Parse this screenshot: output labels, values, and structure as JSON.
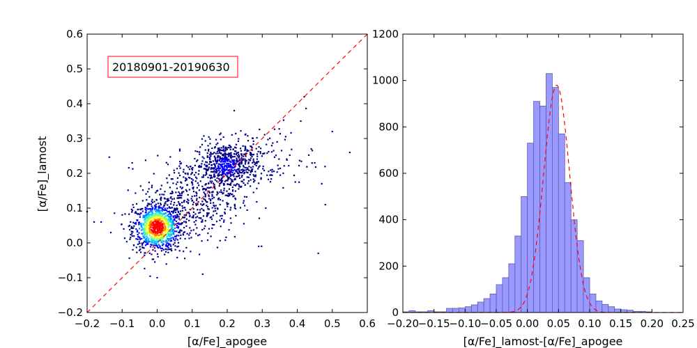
{
  "chart_data": [
    {
      "type": "scatter",
      "xlabel": "[α/Fe]_apogee",
      "ylabel": "[α/Fe]_lamost",
      "xlim": [
        -0.2,
        0.6
      ],
      "ylim": [
        -0.2,
        0.6
      ],
      "xticks": [
        -0.2,
        -0.1,
        0.0,
        0.1,
        0.2,
        0.3,
        0.4,
        0.5,
        0.6
      ],
      "yticks": [
        -0.2,
        -0.1,
        0.0,
        0.1,
        0.2,
        0.3,
        0.4,
        0.5,
        0.6
      ],
      "xtick_labels": [
        "−0.2",
        "−0.1",
        "0.0",
        "0.1",
        "0.2",
        "0.3",
        "0.4",
        "0.5",
        "0.6"
      ],
      "ytick_labels": [
        "−0.2",
        "−0.1",
        "0.0",
        "0.1",
        "0.2",
        "0.3",
        "0.4",
        "0.5",
        "0.6"
      ],
      "annotation": "20180901-20190630",
      "reference_line": {
        "style": "dashed",
        "color": "#ff0000",
        "from": [
          -0.2,
          -0.2
        ],
        "to": [
          0.6,
          0.6
        ]
      },
      "density_colors": [
        "#00008b",
        "#0000ff",
        "#0080ff",
        "#00e0ff",
        "#7fff7f",
        "#ffff00",
        "#ff8000",
        "#ff0000"
      ],
      "clusters": [
        {
          "cx": 0.0,
          "cy": 0.045,
          "sx": 0.035,
          "sy": 0.035,
          "n": 900
        },
        {
          "cx": 0.2,
          "cy": 0.22,
          "sx": 0.045,
          "sy": 0.035,
          "n": 650
        },
        {
          "cx": 0.1,
          "cy": 0.12,
          "sx": 0.07,
          "sy": 0.06,
          "n": 450
        },
        {
          "cx": 0.33,
          "cy": 0.25,
          "sx": 0.06,
          "sy": 0.05,
          "n": 80
        }
      ],
      "outliers": [
        {
          "x": -0.2,
          "y": 0.09
        },
        {
          "x": -0.18,
          "y": 0.06
        },
        {
          "x": -0.16,
          "y": 0.06
        },
        {
          "x": 0.42,
          "y": 0.42
        },
        {
          "x": 0.22,
          "y": 0.38
        },
        {
          "x": 0.5,
          "y": 0.32
        },
        {
          "x": 0.55,
          "y": 0.26
        },
        {
          "x": 0.46,
          "y": -0.03
        },
        {
          "x": 0.48,
          "y": 0.11
        },
        {
          "x": 0.47,
          "y": 0.17
        },
        {
          "x": 0.13,
          "y": -0.09
        },
        {
          "x": 0.0,
          "y": -0.1
        },
        {
          "x": 0.29,
          "y": -0.01
        },
        {
          "x": 0.45,
          "y": 0.23
        },
        {
          "x": 0.44,
          "y": 0.27
        },
        {
          "x": 0.41,
          "y": 0.35
        },
        {
          "x": 0.31,
          "y": 0.1
        },
        {
          "x": 0.36,
          "y": 0.2
        }
      ]
    },
    {
      "type": "bar",
      "subtype": "histogram",
      "xlabel": "[α/Fe]_lamost-[α/Fe]_apogee",
      "ylabel": "",
      "xlim": [
        -0.2,
        0.25
      ],
      "ylim": [
        0,
        1200
      ],
      "xticks": [
        -0.2,
        -0.15,
        -0.1,
        -0.05,
        0.0,
        0.05,
        0.1,
        0.15,
        0.2,
        0.25
      ],
      "yticks": [
        0,
        200,
        400,
        600,
        800,
        1000,
        1200
      ],
      "xtick_labels": [
        "−0.20",
        "−0.15",
        "−0.10",
        "−0.05",
        "0.00",
        "0.05",
        "0.10",
        "0.15",
        "0.20",
        "0.25"
      ],
      "ytick_labels": [
        "0",
        "200",
        "400",
        "600",
        "800",
        "1000",
        "1200"
      ],
      "bin_width": 0.01,
      "bin_start": -0.2,
      "values": [
        3,
        8,
        3,
        3,
        8,
        3,
        3,
        18,
        18,
        20,
        25,
        33,
        45,
        60,
        80,
        120,
        150,
        210,
        330,
        500,
        730,
        910,
        890,
        1030,
        970,
        770,
        560,
        400,
        310,
        150,
        80,
        50,
        35,
        25,
        15,
        12,
        10,
        5,
        5,
        3
      ],
      "bar_color": "#9999ff",
      "bar_edge": "#5a5aa8",
      "fit": {
        "type": "gaussian",
        "mu": 0.047,
        "sigma": 0.021,
        "amplitude": 980,
        "color": "#ff0000",
        "style": "dashed"
      }
    }
  ]
}
